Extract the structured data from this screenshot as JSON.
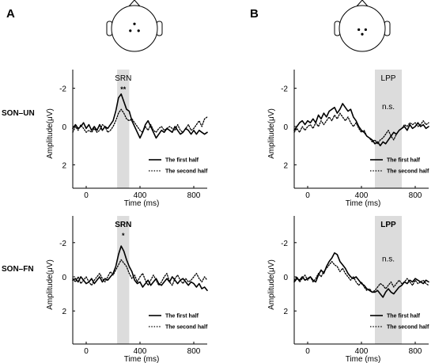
{
  "figure": {
    "panel_letters": [
      "A",
      "B"
    ],
    "row_labels": [
      "SON–UN",
      "SON–FN"
    ],
    "colors": {
      "line": "#000000",
      "window": "#dcdcdc",
      "head": "#000000"
    }
  },
  "chart_data": [
    {
      "type": "line",
      "id": "A1",
      "panel": "A",
      "row": "SON–UN",
      "xlabel": "Time (ms)",
      "ylabel": "Amplitude(μV)",
      "xlim": [
        -100,
        900
      ],
      "ylim": [
        -3,
        3.2
      ],
      "y_inverted": true,
      "xticks": [
        0,
        400,
        800
      ],
      "yticks": [
        -2,
        0,
        2
      ],
      "y_tick_labels": [
        "-2",
        "0",
        "2"
      ],
      "window": {
        "label": "SRN",
        "from": 230,
        "to": 320,
        "significance": "**",
        "label_bold": false,
        "sig_bold": true
      },
      "legend": [
        "The first half",
        "The second half"
      ],
      "series": [
        {
          "name": "The first half",
          "style": "solid",
          "x": [
            -100,
            -80,
            -60,
            -40,
            -20,
            0,
            20,
            40,
            60,
            80,
            100,
            120,
            140,
            160,
            180,
            200,
            220,
            240,
            260,
            280,
            300,
            320,
            340,
            360,
            380,
            400,
            420,
            440,
            460,
            480,
            500,
            520,
            540,
            560,
            580,
            600,
            620,
            640,
            660,
            680,
            700,
            720,
            740,
            760,
            780,
            800,
            820,
            840,
            860,
            880,
            900
          ],
          "y": [
            0.1,
            -0.1,
            0.1,
            0.0,
            -0.2,
            0.1,
            -0.1,
            0.2,
            0.0,
            0.2,
            -0.1,
            0.2,
            0.0,
            0.1,
            -0.1,
            -0.3,
            -0.8,
            -1.5,
            -1.7,
            -1.3,
            -0.9,
            -0.8,
            -0.3,
            0.0,
            0.3,
            0.6,
            0.3,
            -0.1,
            -0.3,
            0.0,
            0.3,
            0.6,
            0.4,
            0.2,
            0.3,
            0.1,
            0.2,
            0.3,
            0.0,
            0.2,
            0.4,
            0.3,
            0.1,
            0.2,
            0.4,
            0.2,
            0.4,
            0.2,
            0.3,
            0.4,
            0.3
          ]
        },
        {
          "name": "The second half",
          "style": "dotted",
          "x": [
            -100,
            -80,
            -60,
            -40,
            -20,
            0,
            20,
            40,
            60,
            80,
            100,
            120,
            140,
            160,
            180,
            200,
            220,
            240,
            260,
            280,
            300,
            320,
            340,
            360,
            380,
            400,
            420,
            440,
            460,
            480,
            500,
            520,
            540,
            560,
            580,
            600,
            620,
            640,
            660,
            680,
            700,
            720,
            740,
            760,
            780,
            800,
            820,
            840,
            860,
            880,
            900
          ],
          "y": [
            0.3,
            0.0,
            0.2,
            -0.1,
            0.1,
            0.3,
            0.2,
            0.3,
            0.1,
            0.3,
            0.2,
            -0.1,
            0.0,
            0.3,
            0.2,
            0.0,
            -0.3,
            -0.7,
            -0.9,
            -0.7,
            -0.4,
            -0.3,
            -0.4,
            -0.2,
            0.0,
            0.2,
            0.3,
            0.0,
            0.2,
            -0.1,
            0.2,
            0.3,
            0.1,
            0.0,
            0.2,
            0.1,
            0.0,
            0.1,
            0.2,
            -0.1,
            0.2,
            0.3,
            0.1,
            -0.1,
            0.2,
            0.1,
            -0.1,
            -0.3,
            0.0,
            -0.4,
            -0.5
          ]
        }
      ]
    },
    {
      "type": "line",
      "id": "B1",
      "panel": "B",
      "row": "SON–UN",
      "xlabel": "Time (ms)",
      "ylabel": "Amplitude(μV)",
      "xlim": [
        -100,
        900
      ],
      "ylim": [
        -3,
        3.2
      ],
      "y_inverted": true,
      "xticks": [
        0,
        400,
        800
      ],
      "yticks": [
        -2,
        0,
        2
      ],
      "y_tick_labels": [
        "-2",
        "0",
        "2"
      ],
      "window": {
        "label": "LPP",
        "from": 500,
        "to": 700,
        "significance": "n.s.",
        "label_bold": false,
        "sig_bold": false
      },
      "legend": [
        "The first half",
        "The second half"
      ],
      "series": [
        {
          "name": "The first half",
          "style": "solid",
          "x": [
            -100,
            -80,
            -60,
            -40,
            -20,
            0,
            20,
            40,
            60,
            80,
            100,
            120,
            140,
            160,
            180,
            200,
            220,
            240,
            260,
            280,
            300,
            320,
            340,
            360,
            380,
            400,
            420,
            440,
            460,
            480,
            500,
            520,
            540,
            560,
            580,
            600,
            620,
            640,
            660,
            680,
            700,
            720,
            740,
            760,
            780,
            800,
            820,
            840,
            860,
            880,
            900
          ],
          "y": [
            0.2,
            0.0,
            -0.2,
            -0.3,
            -0.1,
            -0.3,
            -0.2,
            -0.4,
            -0.2,
            -0.6,
            -0.4,
            -0.7,
            -0.5,
            -0.8,
            -0.9,
            -1.0,
            -0.7,
            -0.9,
            -1.2,
            -1.0,
            -0.8,
            -0.9,
            -0.5,
            -0.3,
            0.0,
            0.2,
            0.3,
            0.5,
            0.6,
            0.7,
            0.9,
            0.8,
            1.0,
            0.8,
            0.9,
            0.7,
            0.5,
            0.3,
            0.4,
            0.2,
            0.1,
            0.0,
            0.2,
            -0.1,
            0.1,
            0.0,
            -0.2,
            0.0,
            -0.1,
            0.1,
            0.0
          ]
        },
        {
          "name": "The second half",
          "style": "dotted",
          "x": [
            -100,
            -80,
            -60,
            -40,
            -20,
            0,
            20,
            40,
            60,
            80,
            100,
            120,
            140,
            160,
            180,
            200,
            220,
            240,
            260,
            280,
            300,
            320,
            340,
            360,
            380,
            400,
            420,
            440,
            460,
            480,
            500,
            520,
            540,
            560,
            580,
            600,
            620,
            640,
            660,
            680,
            700,
            720,
            740,
            760,
            780,
            800,
            820,
            840,
            860,
            880,
            900
          ],
          "y": [
            0.3,
            0.1,
            0.3,
            0.0,
            0.2,
            0.0,
            -0.1,
            0.1,
            -0.2,
            0.0,
            -0.3,
            -0.1,
            -0.3,
            -0.5,
            -0.3,
            -0.6,
            -0.4,
            -0.7,
            -0.5,
            -0.3,
            -0.5,
            -0.2,
            0.0,
            -0.2,
            0.1,
            0.3,
            0.2,
            0.5,
            0.6,
            0.8,
            0.7,
            0.9,
            0.7,
            0.6,
            0.4,
            0.2,
            0.5,
            0.7,
            0.4,
            0.2,
            0.1,
            -0.1,
            0.0,
            -0.2,
            -0.1,
            -0.2,
            0.0,
            -0.1,
            -0.3,
            -0.1,
            -0.2
          ]
        }
      ]
    },
    {
      "type": "line",
      "id": "A2",
      "panel": "A",
      "row": "SON–FN",
      "xlabel": "Time (ms)",
      "ylabel": "Amplitude(μV)",
      "xlim": [
        -100,
        900
      ],
      "ylim": [
        -3.5,
        4
      ],
      "y_inverted": true,
      "xticks": [
        0,
        400,
        800
      ],
      "yticks": [
        -2,
        0,
        2
      ],
      "y_tick_labels": [
        "-2",
        "0",
        "2"
      ],
      "window": {
        "label": "SRN",
        "from": 230,
        "to": 320,
        "significance": "*",
        "label_bold": true,
        "sig_bold": true
      },
      "legend": [
        "The first half",
        "The second half"
      ],
      "series": [
        {
          "name": "The first half",
          "style": "solid",
          "x": [
            -100,
            -80,
            -60,
            -40,
            -20,
            0,
            20,
            40,
            60,
            80,
            100,
            120,
            140,
            160,
            180,
            200,
            220,
            240,
            260,
            280,
            300,
            320,
            340,
            360,
            380,
            400,
            420,
            440,
            460,
            480,
            500,
            520,
            540,
            560,
            580,
            600,
            620,
            640,
            660,
            680,
            700,
            720,
            740,
            760,
            780,
            800,
            820,
            840,
            860,
            880,
            900
          ],
          "y": [
            0.2,
            0.1,
            0.3,
            0.0,
            0.2,
            0.4,
            0.3,
            0.1,
            0.4,
            0.2,
            0.0,
            0.3,
            0.1,
            0.2,
            0.0,
            -0.2,
            -0.6,
            -1.3,
            -1.8,
            -1.5,
            -1.0,
            -0.6,
            -0.3,
            0.2,
            0.4,
            0.3,
            0.6,
            0.4,
            0.2,
            0.5,
            0.3,
            0.1,
            0.4,
            0.5,
            0.3,
            0.1,
            0.3,
            0.0,
            0.2,
            0.4,
            0.2,
            0.1,
            0.3,
            0.5,
            0.3,
            0.4,
            0.6,
            0.4,
            0.7,
            0.6,
            0.8
          ]
        },
        {
          "name": "The second half",
          "style": "dotted",
          "x": [
            -100,
            -80,
            -60,
            -40,
            -20,
            0,
            20,
            40,
            60,
            80,
            100,
            120,
            140,
            160,
            180,
            200,
            220,
            240,
            260,
            280,
            300,
            320,
            340,
            360,
            380,
            400,
            420,
            440,
            460,
            480,
            500,
            520,
            540,
            560,
            580,
            600,
            620,
            640,
            660,
            680,
            700,
            720,
            740,
            760,
            780,
            800,
            820,
            840,
            860,
            880,
            900
          ],
          "y": [
            0.1,
            0.3,
            0.0,
            0.4,
            0.2,
            0.0,
            0.3,
            0.5,
            0.2,
            0.0,
            -0.2,
            0.1,
            0.3,
            0.0,
            -0.3,
            -0.1,
            -0.4,
            -0.7,
            -1.0,
            -0.8,
            -0.6,
            -0.2,
            0.1,
            -0.1,
            0.3,
            0.0,
            -0.2,
            0.2,
            0.5,
            0.2,
            -0.1,
            0.2,
            0.5,
            0.3,
            0.0,
            -0.2,
            0.3,
            0.5,
            0.1,
            -0.1,
            0.2,
            0.4,
            0.1,
            0.3,
            0.2,
            0.0,
            -0.2,
            0.1,
            0.3,
            0.0,
            0.2
          ]
        }
      ]
    },
    {
      "type": "line",
      "id": "B2",
      "panel": "B",
      "row": "SON–FN",
      "xlabel": "Time (ms)",
      "ylabel": "Amplitude(μV)",
      "xlim": [
        -100,
        900
      ],
      "ylim": [
        -3.5,
        4
      ],
      "y_inverted": true,
      "xticks": [
        0,
        400,
        800
      ],
      "yticks": [
        -2,
        0,
        2
      ],
      "y_tick_labels": [
        "-2",
        "0",
        "2"
      ],
      "window": {
        "label": "LPP",
        "from": 500,
        "to": 700,
        "significance": "n.s.",
        "label_bold": true,
        "sig_bold": false
      },
      "legend": [
        "The first half",
        "The second half"
      ],
      "series": [
        {
          "name": "The first half",
          "style": "solid",
          "x": [
            -100,
            -80,
            -60,
            -40,
            -20,
            0,
            20,
            40,
            60,
            80,
            100,
            120,
            140,
            160,
            180,
            200,
            220,
            240,
            260,
            280,
            300,
            320,
            340,
            360,
            380,
            400,
            420,
            440,
            460,
            480,
            500,
            520,
            540,
            560,
            580,
            600,
            620,
            640,
            660,
            680,
            700,
            720,
            740,
            760,
            780,
            800,
            820,
            840,
            860,
            880,
            900
          ],
          "y": [
            0.3,
            0.1,
            0.2,
            0.0,
            0.2,
            0.1,
            0.0,
            0.2,
            0.3,
            -0.1,
            -0.4,
            -0.2,
            -0.6,
            -0.9,
            -1.1,
            -1.4,
            -1.3,
            -0.9,
            -0.7,
            -0.5,
            -0.2,
            0.0,
            0.1,
            0.0,
            0.2,
            0.4,
            0.5,
            0.7,
            0.8,
            0.9,
            0.9,
            0.8,
            1.0,
            1.2,
            0.9,
            0.7,
            0.9,
            1.0,
            0.8,
            0.6,
            0.5,
            0.3,
            0.4,
            0.2,
            0.3,
            0.1,
            0.2,
            0.3,
            0.4,
            0.2,
            0.3
          ]
        },
        {
          "name": "The second half",
          "style": "dotted",
          "x": [
            -100,
            -80,
            -60,
            -40,
            -20,
            0,
            20,
            40,
            60,
            80,
            100,
            120,
            140,
            160,
            180,
            200,
            220,
            240,
            260,
            280,
            300,
            320,
            340,
            360,
            380,
            400,
            420,
            440,
            460,
            480,
            500,
            520,
            540,
            560,
            580,
            600,
            620,
            640,
            660,
            680,
            700,
            720,
            740,
            760,
            780,
            800,
            820,
            840,
            860,
            880,
            900
          ],
          "y": [
            0.2,
            0.0,
            0.3,
            0.1,
            -0.1,
            0.2,
            0.0,
            0.3,
            0.1,
            -0.2,
            0.0,
            -0.3,
            -0.5,
            -0.7,
            -0.9,
            -0.7,
            -0.6,
            -0.3,
            -0.5,
            -0.2,
            0.0,
            0.2,
            0.0,
            0.3,
            0.5,
            0.3,
            0.6,
            0.8,
            0.7,
            0.9,
            0.8,
            0.6,
            0.4,
            0.5,
            0.7,
            0.5,
            0.3,
            0.6,
            0.4,
            0.2,
            0.4,
            0.3,
            0.1,
            0.3,
            0.5,
            0.2,
            0.4,
            0.3,
            0.2,
            0.4,
            0.5
          ]
        }
      ]
    }
  ],
  "head_maps": [
    {
      "panel": "A",
      "electrodes": [
        [
          0,
          -0.2
        ],
        [
          -0.18,
          0.1
        ],
        [
          0.18,
          0.1
        ]
      ]
    },
    {
      "panel": "B",
      "electrodes": [
        [
          -0.15,
          0.05
        ],
        [
          0.15,
          0.05
        ],
        [
          0,
          0.25
        ]
      ]
    }
  ]
}
